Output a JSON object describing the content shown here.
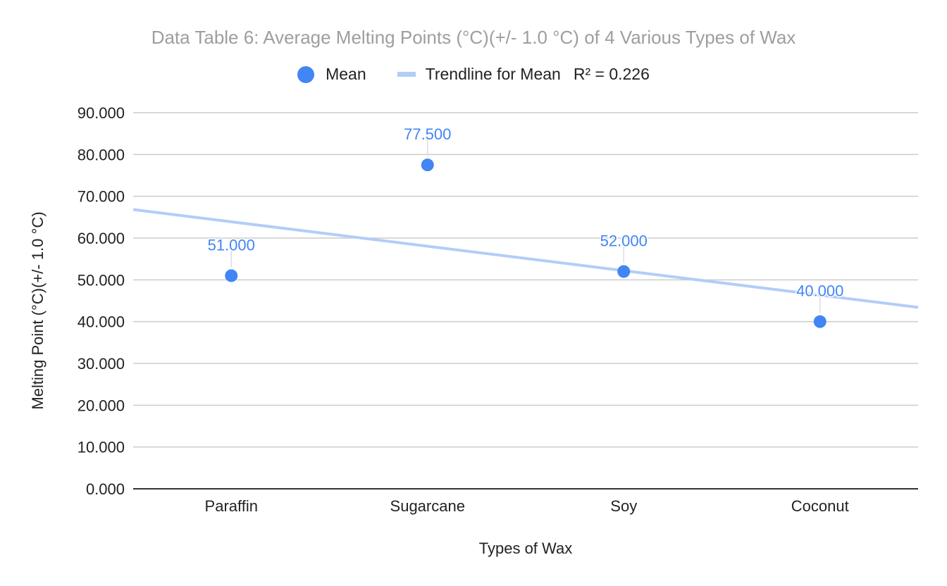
{
  "chart_data": {
    "type": "scatter",
    "title": "Data Table 6: Average Melting Points (°C)(+/- 1.0 °C) of 4 Various Types of Wax",
    "xlabel": "Types of Wax",
    "ylabel": "Melting Point  (°C)(+/- 1.0 °C)",
    "categories": [
      "Paraffin",
      "Sugarcane",
      "Soy",
      "Coconut"
    ],
    "series": [
      {
        "name": "Mean",
        "values": [
          51.0,
          77.5,
          52.0,
          40.0
        ],
        "labels": [
          "51.000",
          "77.500",
          "52.000",
          "40.000"
        ],
        "color": "#4285f4"
      }
    ],
    "trendline": {
      "name": "Trendline for Mean",
      "r_squared_label": "R² = 0.226",
      "type": "linear",
      "color": "#b3cdf8"
    },
    "ylim": [
      0,
      90
    ],
    "yticks": [
      "0.000",
      "10.000",
      "20.000",
      "30.000",
      "40.000",
      "50.000",
      "60.000",
      "70.000",
      "80.000",
      "90.000"
    ],
    "grid": true,
    "legend_position": "top"
  },
  "colors": {
    "title": "#9e9e9e",
    "gridline": "#cccccc",
    "baseline": "#333333",
    "text": "#222222"
  }
}
